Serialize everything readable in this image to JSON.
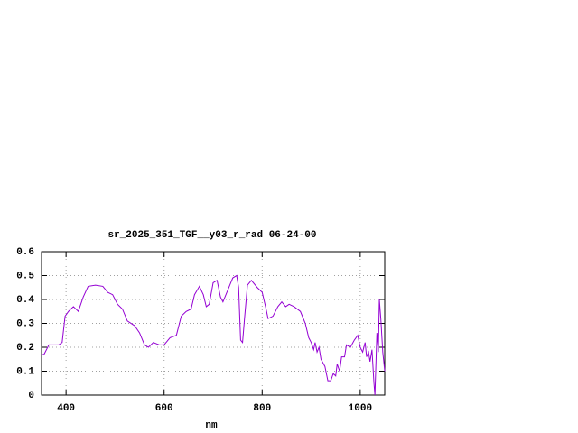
{
  "chart_data": {
    "type": "line",
    "title": "sr_2025_351_TGF__y03_r_rad 06-24-00",
    "x_label": "nm",
    "xlim": [
      350,
      1050
    ],
    "xticks": [
      400,
      600,
      800,
      1000
    ],
    "ylim": [
      0,
      0.6
    ],
    "yticks": [
      0,
      0.1,
      0.2,
      0.3,
      0.4,
      0.5,
      0.6
    ],
    "grid": true,
    "series": [
      {
        "color": "#9400d3",
        "x": [
          350,
          355,
          365,
          375,
          385,
          392,
          398,
          405,
          415,
          425,
          435,
          445,
          460,
          475,
          485,
          495,
          505,
          515,
          525,
          540,
          550,
          560,
          568,
          578,
          590,
          600,
          612,
          625,
          635,
          645,
          655,
          662,
          672,
          680,
          686,
          692,
          700,
          708,
          715,
          720,
          730,
          740,
          748,
          752,
          756,
          760,
          764,
          770,
          778,
          790,
          800,
          808,
          812,
          822,
          832,
          840,
          848,
          855,
          865,
          878,
          888,
          895,
          900,
          905,
          908,
          912,
          916,
          920,
          928,
          934,
          940,
          945,
          950,
          953,
          958,
          962,
          968,
          972,
          980,
          988,
          995,
          1000,
          1005,
          1010,
          1013,
          1017,
          1020,
          1024,
          1028,
          1030,
          1034,
          1037,
          1039,
          1042,
          1046,
          1050
        ],
        "values": [
          0.17,
          0.17,
          0.21,
          0.21,
          0.21,
          0.22,
          0.33,
          0.35,
          0.37,
          0.35,
          0.41,
          0.455,
          0.46,
          0.455,
          0.43,
          0.42,
          0.38,
          0.36,
          0.31,
          0.29,
          0.26,
          0.21,
          0.2,
          0.22,
          0.21,
          0.21,
          0.24,
          0.25,
          0.33,
          0.35,
          0.36,
          0.42,
          0.455,
          0.42,
          0.37,
          0.38,
          0.47,
          0.48,
          0.41,
          0.39,
          0.44,
          0.49,
          0.5,
          0.45,
          0.23,
          0.22,
          0.32,
          0.46,
          0.48,
          0.45,
          0.43,
          0.36,
          0.32,
          0.33,
          0.37,
          0.39,
          0.37,
          0.38,
          0.37,
          0.35,
          0.3,
          0.24,
          0.22,
          0.19,
          0.22,
          0.18,
          0.2,
          0.15,
          0.12,
          0.06,
          0.06,
          0.09,
          0.08,
          0.13,
          0.1,
          0.16,
          0.16,
          0.21,
          0.2,
          0.23,
          0.25,
          0.2,
          0.18,
          0.22,
          0.16,
          0.18,
          0.14,
          0.19,
          0.05,
          0,
          0.26,
          0.18,
          0.4,
          0.32,
          0.18,
          0.1
        ]
      }
    ]
  }
}
